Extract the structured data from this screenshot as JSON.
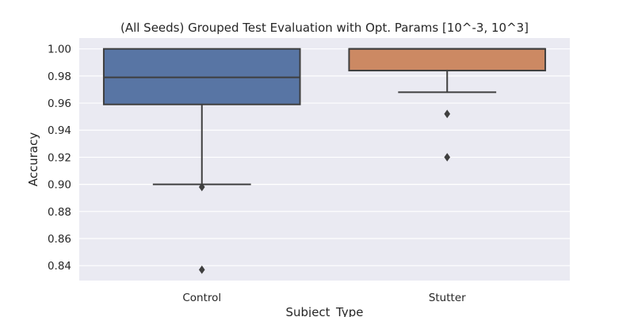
{
  "chart_data": {
    "type": "box",
    "title": "(All Seeds) Grouped Test Evaluation with Opt. Params [10^-3, 10^3]",
    "xlabel": "Subject_Type",
    "ylabel": "Accuracy",
    "ylim": [
      0.829,
      1.008
    ],
    "yticks": [
      "0.84",
      "0.86",
      "0.88",
      "0.90",
      "0.92",
      "0.94",
      "0.96",
      "0.98",
      "1.00"
    ],
    "grid": true,
    "categories": [
      "Control",
      "Stutter"
    ],
    "boxes": [
      {
        "category": "Control",
        "color": "#5875a4",
        "q1": 0.959,
        "median": 0.979,
        "q3": 1.0,
        "whisker_low": 0.9,
        "whisker_high": 1.0,
        "outliers": [
          0.898,
          0.837
        ]
      },
      {
        "category": "Stutter",
        "color": "#cc8963",
        "q1": 0.984,
        "median": 1.0,
        "q3": 1.0,
        "whisker_low": 0.968,
        "whisker_high": 1.0,
        "outliers": [
          0.952,
          0.92
        ]
      }
    ]
  }
}
